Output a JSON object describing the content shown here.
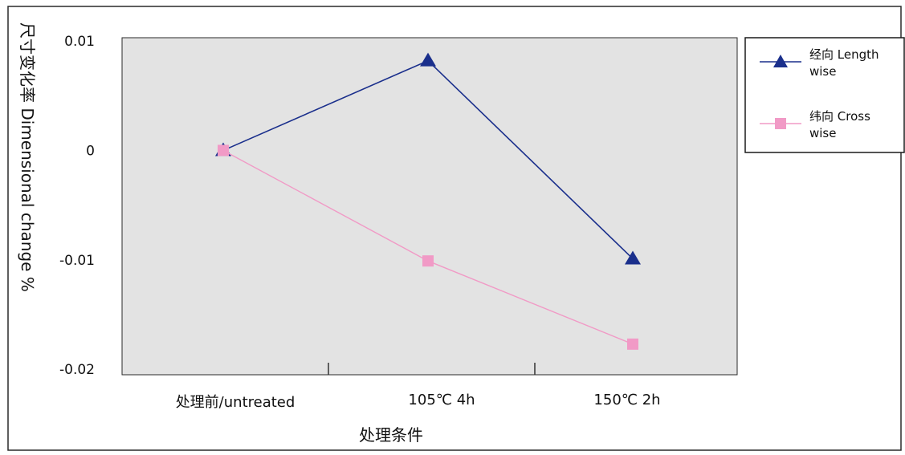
{
  "chart_data": {
    "type": "line",
    "categories": [
      "处理前/untreated",
      "105℃ 4h",
      "150℃ 2h"
    ],
    "series": [
      {
        "name_line1": "经向 Length",
        "name_line2": "wise",
        "color": "#1a2f8c",
        "marker": "triangle",
        "values": [
          0,
          0.0082,
          -0.0099
        ]
      },
      {
        "name_line1": "纬向 Cross",
        "name_line2": "wise",
        "color": "#f19ac6",
        "marker": "square",
        "values": [
          0,
          -0.0101,
          -0.0177
        ]
      }
    ],
    "yticks": [
      0.01,
      0,
      -0.01,
      -0.02
    ],
    "ytick_labels": [
      "0.01",
      "0",
      "-0.01",
      "-0.02"
    ],
    "ylim": [
      -0.0205,
      0.0103
    ],
    "ylabel": "尺寸变化率 Dimensional change %",
    "xlabel": "处理条件",
    "grid": false,
    "legend_position": "right",
    "plot_background": "#e3e3e3"
  }
}
